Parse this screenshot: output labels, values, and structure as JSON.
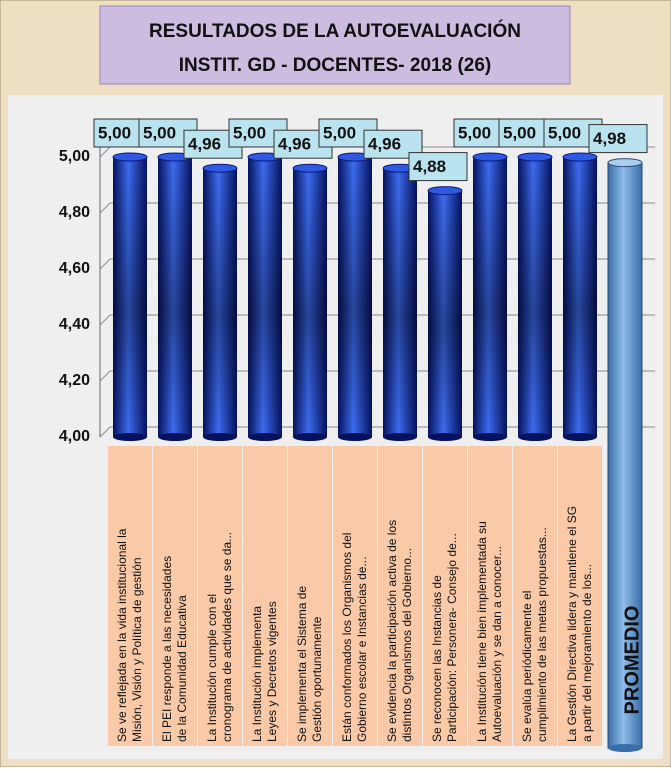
{
  "chart_data": {
    "type": "bar",
    "title": "RESULTADOS DE LA AUTOEVALUACIÓN",
    "subtitle": "INSTIT. GD - DOCENTES- 2018  (26)",
    "categories": [
      "Se ve reflejada en la vida institucional la Misión, Visión y Política de gestión",
      "El PEI responde a las necesidades de la Comunidad Educativa",
      "La Institución cumple con el cronograma de actividades que se da...",
      "La Institución implementa Leyes y Decretos vigentes",
      "Se implementa el Sistema de Gestión oportunamente",
      "Están conformados los Organismos del Gobierno escolar e  Instancias de...",
      "Se evidencia la participación activa de los distintos Organismos del Gobierno...",
      "Se reconocen las Instancias de Participación: Personera- Consejo de...",
      "La Institución tiene bien implementada su Autoevaluación y se dan a conocer...",
      "Se evalúa periódicamente el cumplimiento de las metas propuestas...",
      "La Gestión Directiva lidera y mantiene el SG a partir del mejoramiento de los...",
      "PROMEDIO"
    ],
    "values": [
      5,
      5,
      4.96,
      5,
      4.96,
      5,
      4.96,
      4.88,
      5,
      5,
      5,
      4.98
    ],
    "value_labels": [
      "5,00",
      "5,00",
      "4,96",
      "5,00",
      "4,96",
      "5,00",
      "4,96",
      "4,88",
      "5,00",
      "5,00",
      "5,00",
      "4,98"
    ],
    "color": "#1a3cd0",
    "highlight_color": "#5b9bd5",
    "ylim": [
      4,
      5
    ],
    "yticks": [
      {
        "value": 4,
        "label": "4,00"
      },
      {
        "value": 4.2,
        "label": "4,20"
      },
      {
        "value": 4.4,
        "label": "4,40"
      },
      {
        "value": 4.6,
        "label": "4,60"
      },
      {
        "value": 4.8,
        "label": "4,80"
      },
      {
        "value": 5,
        "label": "5,00"
      }
    ],
    "grid": true
  }
}
